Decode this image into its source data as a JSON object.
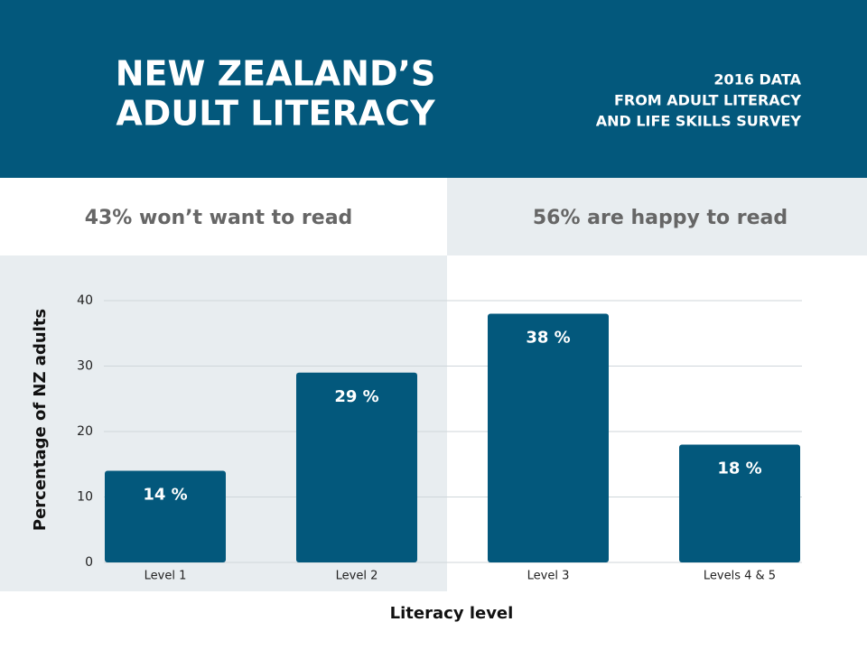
{
  "chart_data": {
    "type": "bar",
    "title": [
      "NEW ZEALAND’S",
      "ADULT LITERACY"
    ],
    "subtitle": [
      "2016 DATA",
      "FROM ADULT LITERACY",
      "AND LIFE SKILLS SURVEY"
    ],
    "annotations": [
      "43% won’t want to read",
      "56% are happy to read"
    ],
    "x_label": "Literacy level",
    "y_label": "Percentage of  NZ adults",
    "categories": [
      "Level 1",
      "Level 2",
      "Level 3",
      "Levels 4 & 5"
    ],
    "values": [
      14,
      29,
      38,
      18
    ],
    "value_labels": [
      "14 %",
      "29 %",
      "38 %",
      "18 %"
    ],
    "color": "#03587c",
    "ylim": [
      0,
      40
    ],
    "yticks": [
      0,
      10,
      20,
      30,
      40
    ],
    "grid": true
  }
}
